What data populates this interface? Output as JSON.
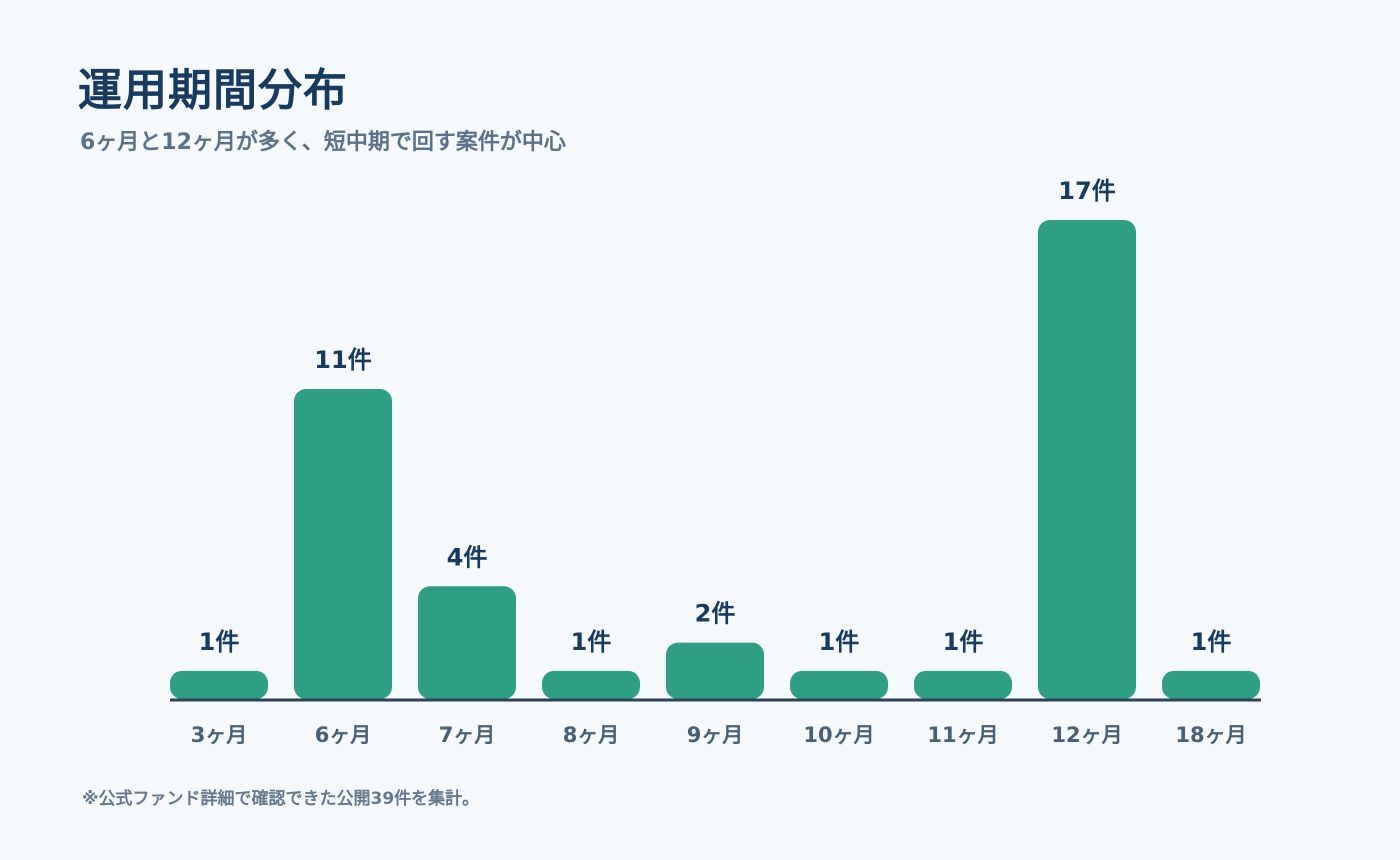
{
  "chart_data": {
    "type": "bar",
    "title": "運用期間分布",
    "subtitle": "6ヶ月と12ヶ月が多く、短中期で回す案件が中心",
    "categories": [
      "3ヶ月",
      "6ヶ月",
      "7ヶ月",
      "8ヶ月",
      "9ヶ月",
      "10ヶ月",
      "11ヶ月",
      "12ヶ月",
      "18ヶ月"
    ],
    "values": [
      1,
      11,
      4,
      1,
      2,
      1,
      1,
      17,
      1
    ],
    "value_labels": [
      "1件",
      "11件",
      "4件",
      "1件",
      "2件",
      "1件",
      "1件",
      "17件",
      "1件"
    ],
    "color": "#2e9e84",
    "note": "※公式ファンド詳細で確認できた公開39件を集計。"
  }
}
